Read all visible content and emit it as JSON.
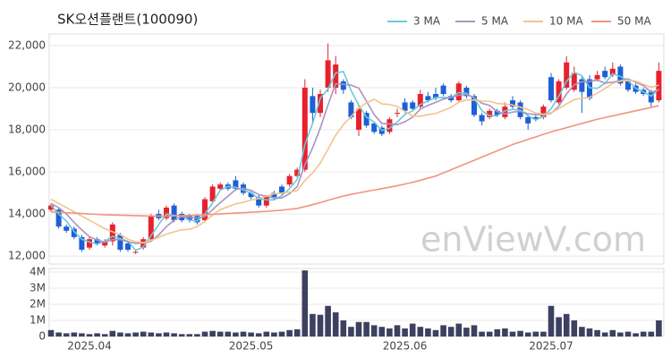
{
  "chart_data": [
    {
      "type": "candlestick",
      "title": "SK오션플랜트(100090)",
      "watermark": "enViewV.com",
      "open": [
        14200,
        14200,
        13400,
        13300,
        12900,
        12400,
        12800,
        12500,
        12700,
        13000,
        12600,
        12200,
        12400,
        12800,
        14000,
        13800,
        14400,
        14000,
        13900,
        13900,
        13700,
        14600,
        15200,
        15400,
        15600,
        15400,
        15000,
        14800,
        14400,
        15000,
        15300,
        15400,
        15800,
        16100,
        19600,
        18800,
        20000,
        20000,
        20300,
        19300,
        18000,
        18800,
        18300,
        18100,
        17900,
        18800,
        19300,
        19300,
        19100,
        19600,
        19700,
        20100,
        19600,
        19400,
        20000,
        19600,
        18700,
        18600,
        18900,
        18600,
        19400,
        19300,
        18600,
        18600,
        18600,
        20500,
        19300,
        20000,
        19900,
        20400,
        20400,
        20400,
        20800,
        20600,
        21000,
        20300,
        20100,
        19900,
        19800,
        19400
      ],
      "high": [
        14500,
        14300,
        13500,
        13400,
        13000,
        12900,
        12900,
        12800,
        13600,
        13100,
        12700,
        12300,
        12900,
        14000,
        14200,
        14400,
        14500,
        14100,
        14000,
        14000,
        14800,
        15400,
        15500,
        15500,
        15800,
        15500,
        15100,
        14900,
        14900,
        15100,
        15400,
        15900,
        16200,
        20400,
        20000,
        19900,
        22100,
        21500,
        20400,
        19400,
        19200,
        18900,
        18400,
        18200,
        18600,
        19000,
        19500,
        19400,
        19900,
        19800,
        20000,
        20200,
        19700,
        20300,
        20100,
        19700,
        18800,
        19000,
        19000,
        19300,
        19600,
        19400,
        18700,
        18700,
        19200,
        20700,
        20400,
        21500,
        21000,
        20500,
        20600,
        20800,
        21000,
        21200,
        21100,
        20400,
        20200,
        20000,
        19900,
        21200
      ],
      "low": [
        14100,
        13300,
        13100,
        12800,
        12200,
        12300,
        12500,
        12400,
        12500,
        12200,
        12200,
        12100,
        12300,
        12700,
        13700,
        13700,
        13600,
        13600,
        13600,
        13500,
        13600,
        14500,
        15100,
        15100,
        15100,
        14900,
        14700,
        14300,
        14300,
        14700,
        14900,
        15300,
        15700,
        16000,
        18300,
        18600,
        19800,
        19700,
        19700,
        18500,
        17700,
        18100,
        17800,
        17700,
        17800,
        18600,
        18800,
        18900,
        19000,
        19300,
        19400,
        19600,
        19300,
        19300,
        19500,
        18600,
        18200,
        18500,
        18600,
        18500,
        19000,
        18500,
        18000,
        18400,
        18500,
        19300,
        19200,
        19900,
        19800,
        18800,
        19400,
        20300,
        20400,
        20500,
        20100,
        19800,
        19700,
        19600,
        19100,
        19300
      ],
      "close": [
        14400,
        13400,
        13200,
        12900,
        12300,
        12800,
        12600,
        12700,
        13500,
        12300,
        12300,
        12200,
        12800,
        13900,
        13800,
        14300,
        13700,
        13700,
        13700,
        13600,
        14700,
        15300,
        15400,
        15200,
        15200,
        15000,
        14800,
        14400,
        14800,
        14800,
        15000,
        15800,
        16100,
        20000,
        18800,
        19700,
        21300,
        21100,
        19900,
        18600,
        19000,
        18200,
        17900,
        17800,
        18500,
        18800,
        18900,
        19000,
        19700,
        19400,
        19500,
        19700,
        19400,
        20200,
        19600,
        18700,
        18400,
        18900,
        18700,
        19100,
        19100,
        18600,
        18300,
        18500,
        19100,
        19400,
        20300,
        21200,
        20700,
        19800,
        19500,
        20600,
        20500,
        20900,
        20200,
        19900,
        19800,
        19700,
        19300,
        20800
      ],
      "up_color": "#e8212d",
      "down_color": "#1f5fd6",
      "series": [
        {
          "name": "3 MA",
          "color": "#6cc9d8",
          "values": [
            14400,
            14000,
            13667,
            13167,
            12800,
            12667,
            12567,
            12700,
            12933,
            12833,
            12700,
            12267,
            12433,
            12967,
            13500,
            14000,
            13933,
            13900,
            13700,
            13667,
            14000,
            14533,
            15133,
            15300,
            15267,
            15133,
            15000,
            14733,
            14667,
            14667,
            14867,
            15200,
            15633,
            17300,
            18300,
            19500,
            19933,
            20700,
            20767,
            19867,
            19167,
            18600,
            18367,
            17967,
            18067,
            18367,
            18733,
            18900,
            19200,
            19367,
            19533,
            19533,
            19533,
            19767,
            19733,
            19500,
            18900,
            18667,
            18667,
            18900,
            18967,
            18933,
            18667,
            18467,
            18633,
            19000,
            19600,
            20300,
            20733,
            20567,
            20000,
            19967,
            20200,
            20667,
            20533,
            20333,
            19967,
            19800,
            19600,
            19933
          ]
        },
        {
          "name": "5 MA",
          "color": "#a993c2",
          "values": [
            14500,
            14300,
            14000,
            13600,
            13240,
            12920,
            12760,
            12660,
            12780,
            12780,
            12680,
            12600,
            12620,
            12700,
            13000,
            13400,
            13700,
            13880,
            13840,
            13800,
            13880,
            14200,
            14540,
            14840,
            15160,
            15220,
            15120,
            14920,
            14840,
            14760,
            14760,
            14960,
            15300,
            16340,
            17140,
            18080,
            19180,
            20180,
            20160,
            20120,
            19980,
            19360,
            18720,
            18300,
            18280,
            18240,
            18380,
            18600,
            18980,
            19160,
            19300,
            19460,
            19540,
            19640,
            19680,
            19520,
            19260,
            19160,
            18860,
            18760,
            18840,
            18880,
            18760,
            18720,
            18720,
            18780,
            19120,
            19700,
            20140,
            20280,
            20300,
            20360,
            20220,
            20260,
            20340,
            20420,
            20260,
            20100,
            19780,
            19900
          ]
        },
        {
          "name": "10 MA",
          "color": "#f2c48c",
          "values": [
            14700,
            14500,
            14300,
            14100,
            13900,
            13700,
            13500,
            13300,
            13150,
            13010,
            12800,
            12680,
            12640,
            12740,
            12890,
            13040,
            13150,
            13250,
            13270,
            13400,
            13640,
            13950,
            14210,
            14340,
            14480,
            14550,
            14660,
            14730,
            14840,
            14960,
            14990,
            15040,
            15110,
            15590,
            15950,
            16420,
            17070,
            17740,
            18250,
            18630,
            19030,
            19270,
            19450,
            19230,
            19200,
            19110,
            18870,
            18660,
            18640,
            18720,
            18770,
            18920,
            19070,
            19310,
            19420,
            19410,
            19360,
            19350,
            19250,
            19220,
            19180,
            19070,
            18960,
            18790,
            18740,
            18810,
            19000,
            19230,
            19430,
            19500,
            19540,
            19740,
            19960,
            20200,
            20310,
            20360,
            20310,
            20160,
            20020,
            20120
          ]
        },
        {
          "name": "50 MA",
          "color": "#f0947e",
          "values": [
            14100,
            14080,
            14060,
            14040,
            14020,
            14000,
            13980,
            13960,
            13950,
            13940,
            13930,
            13920,
            13910,
            13900,
            13900,
            13900,
            13910,
            13920,
            13930,
            13940,
            13960,
            13980,
            14000,
            14020,
            14040,
            14060,
            14080,
            14100,
            14120,
            14150,
            14180,
            14220,
            14260,
            14350,
            14440,
            14540,
            14650,
            14750,
            14850,
            14930,
            15000,
            15070,
            15140,
            15200,
            15270,
            15340,
            15420,
            15500,
            15600,
            15700,
            15800,
            15950,
            16100,
            16250,
            16400,
            16550,
            16700,
            16850,
            17000,
            17150,
            17300,
            17420,
            17540,
            17660,
            17780,
            17900,
            18000,
            18100,
            18200,
            18300,
            18400,
            18500,
            18580,
            18660,
            18740,
            18820,
            18900,
            18980,
            19060,
            19140
          ]
        }
      ],
      "ylim": [
        11620,
        22550
      ],
      "yticks": [
        {
          "value": 12000,
          "label": "12,000"
        },
        {
          "value": 14000,
          "label": "14,000"
        },
        {
          "value": 16000,
          "label": "16,000"
        },
        {
          "value": 18000,
          "label": "18,000"
        },
        {
          "value": 20000,
          "label": "20,000"
        },
        {
          "value": 22000,
          "label": "22,000"
        }
      ],
      "grid": true,
      "legend": "top-right"
    },
    {
      "type": "bar",
      "color": "#3d4160",
      "categories": [
        null,
        null,
        null,
        null,
        null,
        "2025.04",
        null,
        null,
        null,
        null,
        null,
        null,
        null,
        null,
        null,
        null,
        null,
        null,
        null,
        null,
        null,
        null,
        null,
        null,
        null,
        null,
        "2025.05",
        null,
        null,
        null,
        null,
        null,
        null,
        null,
        null,
        null,
        null,
        null,
        null,
        null,
        null,
        null,
        null,
        null,
        null,
        null,
        "2025.06",
        null,
        null,
        null,
        null,
        null,
        null,
        null,
        null,
        null,
        null,
        null,
        null,
        null,
        null,
        null,
        null,
        null,
        null,
        "2025.07",
        null,
        null,
        null,
        null,
        null,
        null,
        null,
        null,
        null,
        null,
        null,
        null,
        null,
        null
      ],
      "values": [
        400000,
        250000,
        200000,
        250000,
        200000,
        150000,
        200000,
        150000,
        350000,
        250000,
        200000,
        250000,
        300000,
        250000,
        200000,
        250000,
        200000,
        150000,
        150000,
        150000,
        300000,
        350000,
        300000,
        300000,
        250000,
        300000,
        250000,
        200000,
        300000,
        250000,
        300000,
        400000,
        450000,
        4100000,
        1400000,
        1350000,
        1900000,
        1500000,
        1000000,
        600000,
        900000,
        900000,
        700000,
        600000,
        500000,
        700000,
        500000,
        800000,
        600000,
        500000,
        400000,
        700000,
        600000,
        800000,
        550000,
        700000,
        300000,
        300000,
        450000,
        500000,
        300000,
        350000,
        250000,
        300000,
        300000,
        1900000,
        1200000,
        1400000,
        1000000,
        600000,
        500000,
        400000,
        250000,
        400000,
        250000,
        300000,
        200000,
        300000,
        300000,
        1000000
      ],
      "ylim": [
        0,
        4220000
      ],
      "yticks": [
        0,
        {
          "value": 1000000,
          "label": "1M"
        },
        {
          "value": 2000000,
          "label": "2M"
        },
        {
          "value": 3000000,
          "label": "3M"
        },
        {
          "value": 4000000,
          "label": "4M"
        }
      ],
      "grid": true
    }
  ]
}
